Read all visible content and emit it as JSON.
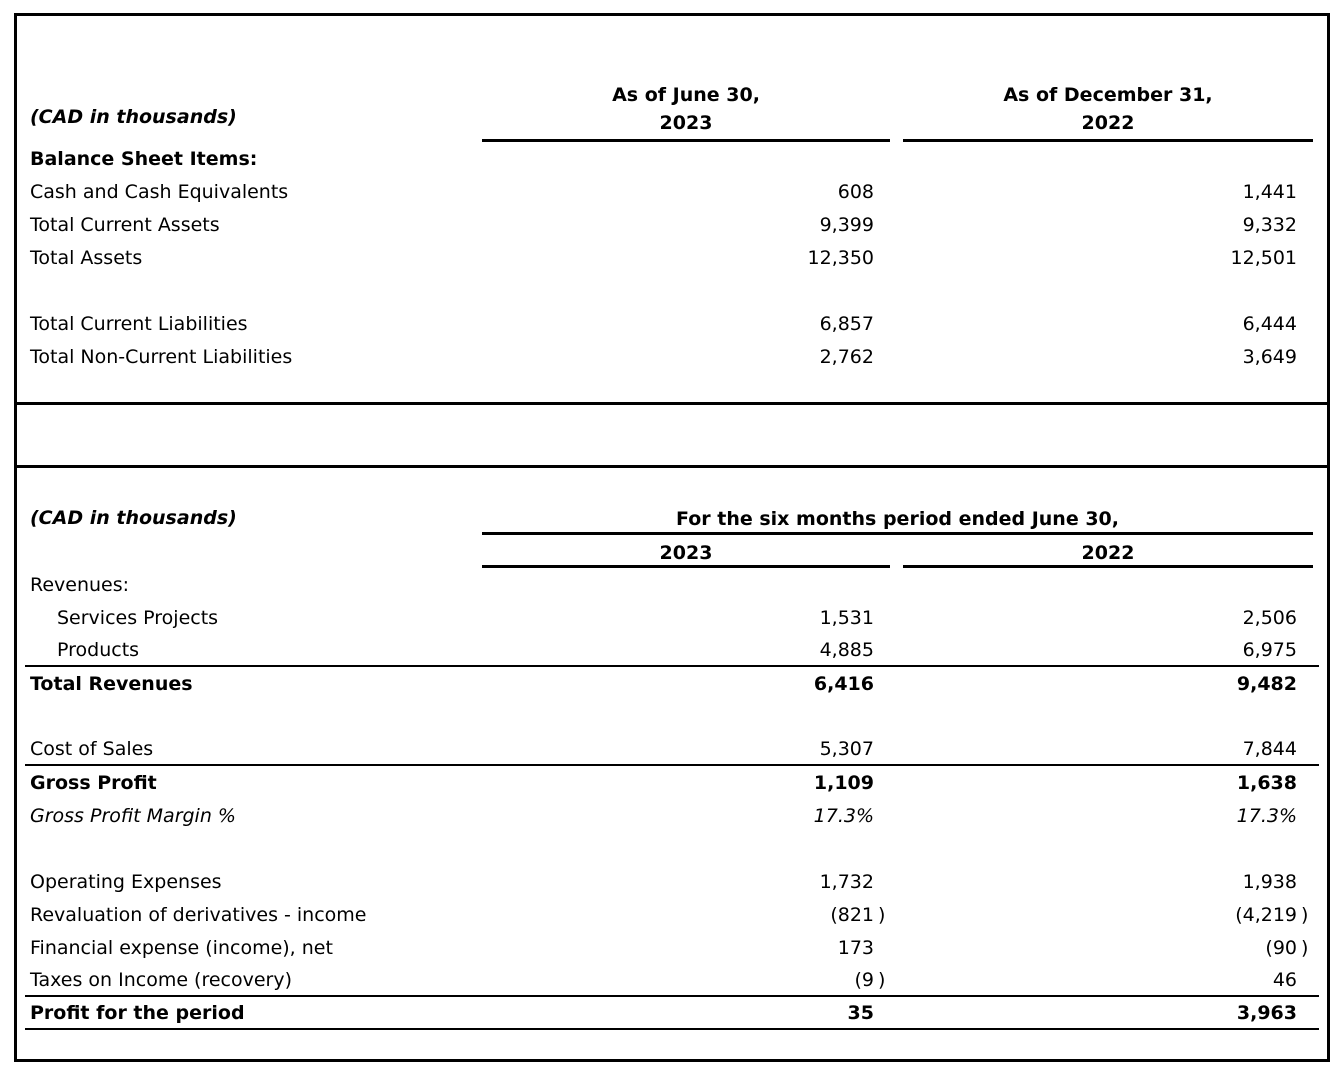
{
  "balance_sheet": {
    "unit_label": "(CAD in thousands)",
    "columns": [
      {
        "line1": "As of June 30,",
        "line2": "2023"
      },
      {
        "line1": "As of December 31,",
        "line2": "2022"
      }
    ],
    "section_title": "Balance Sheet Items:",
    "rows": [
      {
        "label": "Cash and Cash Equivalents",
        "v1": "608",
        "v2": "1,441"
      },
      {
        "label": "Total Current Assets",
        "v1": "9,399",
        "v2": "9,332"
      },
      {
        "label": "Total Assets",
        "v1": "12,350",
        "v2": "12,501"
      },
      {
        "label": "Total Current Liabilities",
        "v1": "6,857",
        "v2": "6,444"
      },
      {
        "label": "Total Non-Current Liabilities",
        "v1": "2,762",
        "v2": "3,649"
      }
    ]
  },
  "income_statement": {
    "unit_label": "(CAD in thousands)",
    "period_header": "For the six months period ended June 30,",
    "year_headers": [
      "2023",
      "2022"
    ],
    "rows": [
      {
        "label": "Revenues:"
      },
      {
        "label": "Services Projects",
        "v1": "1,531",
        "v2": "2,506"
      },
      {
        "label": "Products",
        "v1": "4,885",
        "v2": "6,975"
      },
      {
        "label": "Total Revenues",
        "v1": "6,416",
        "v2": "9,482"
      },
      {
        "label": "Cost of Sales",
        "v1": "5,307",
        "v2": "7,844"
      },
      {
        "label": "Gross Profit",
        "v1": "1,109",
        "v2": "1,638"
      },
      {
        "label": "Gross Profit Margin %",
        "v1": "17.3%",
        "v2": "17.3%"
      },
      {
        "label": "Operating Expenses",
        "v1": "1,732",
        "v2": "1,938"
      },
      {
        "label": "Revaluation of derivatives - income",
        "v1": "(821",
        "p1": ")",
        "v2": "(4,219",
        "p2": ")"
      },
      {
        "label": "Financial expense (income), net",
        "v1": "173",
        "v2": "(90",
        "p2": ")"
      },
      {
        "label": "Taxes on Income (recovery)",
        "v1": "(9",
        "p1": ")",
        "v2": "46"
      },
      {
        "label": "Profit for the period",
        "v1": "35",
        "v2": "3,963"
      }
    ]
  }
}
